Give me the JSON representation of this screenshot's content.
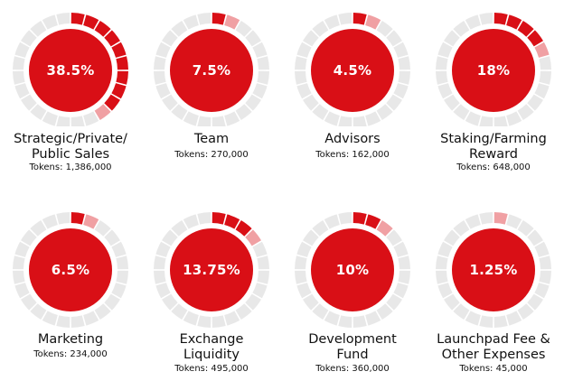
{
  "chart_data": {
    "type": "pie",
    "segments_per_ring": 24,
    "colors": {
      "fill": "#d90f16",
      "segment": "#d90f16",
      "segment_light": "#f0a0a3",
      "track": "#e8e8e8"
    },
    "items": [
      {
        "label": "Strategic/Private/\nPublic Sales",
        "percent": 38.5,
        "pct_text": "38.5%",
        "tokens_text": "Tokens: 1,386,000"
      },
      {
        "label": "Team",
        "percent": 7.5,
        "pct_text": "7.5%",
        "tokens_text": "Tokens: 270,000"
      },
      {
        "label": "Advisors",
        "percent": 4.5,
        "pct_text": "4.5%",
        "tokens_text": "Tokens: 162,000"
      },
      {
        "label": "Staking/Farming\nReward",
        "percent": 18,
        "pct_text": "18%",
        "tokens_text": "Tokens: 648,000"
      },
      {
        "label": "Marketing",
        "percent": 6.5,
        "pct_text": "6.5%",
        "tokens_text": "Tokens: 234,000"
      },
      {
        "label": "Exchange\nLiquidity",
        "percent": 13.75,
        "pct_text": "13.75%",
        "tokens_text": "Tokens: 495,000"
      },
      {
        "label": "Development\nFund",
        "percent": 10,
        "pct_text": "10%",
        "tokens_text": "Tokens: 360,000"
      },
      {
        "label": "Launchpad Fee &\nOther Expenses",
        "percent": 1.25,
        "pct_text": "1.25%",
        "tokens_text": "Tokens: 45,000"
      }
    ]
  }
}
